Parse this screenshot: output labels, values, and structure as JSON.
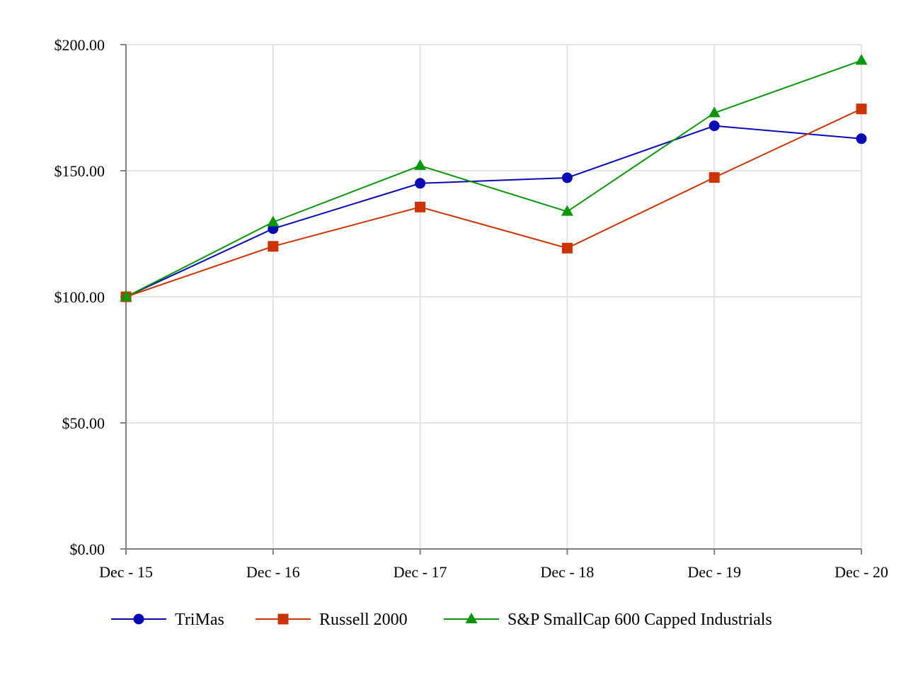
{
  "chart_data": {
    "type": "line",
    "categories": [
      "Dec - 15",
      "Dec - 16",
      "Dec - 17",
      "Dec - 18",
      "Dec - 19",
      "Dec - 20"
    ],
    "y_ticks": [
      0,
      50,
      100,
      150,
      200
    ],
    "y_tick_labels": [
      "$0.00",
      "$50.00",
      "$100.00",
      "$150.00",
      "$200.00"
    ],
    "ylim": [
      0,
      200
    ],
    "grid": true,
    "legend_position": "bottom",
    "series": [
      {
        "name": "TriMas",
        "color": "#0a0ab4",
        "marker": "circle",
        "values": [
          100.0,
          127.0,
          145.0,
          147.2,
          167.8,
          162.7
        ]
      },
      {
        "name": "Russell 2000",
        "color": "#cc3300",
        "marker": "square",
        "values": [
          100.0,
          120.0,
          135.6,
          119.3,
          147.3,
          174.5
        ]
      },
      {
        "name": "S&P SmallCap 600 Capped Industrials",
        "color": "#0a960a",
        "marker": "triangle",
        "values": [
          100.0,
          129.6,
          152.0,
          133.8,
          172.9,
          193.7
        ]
      }
    ]
  }
}
